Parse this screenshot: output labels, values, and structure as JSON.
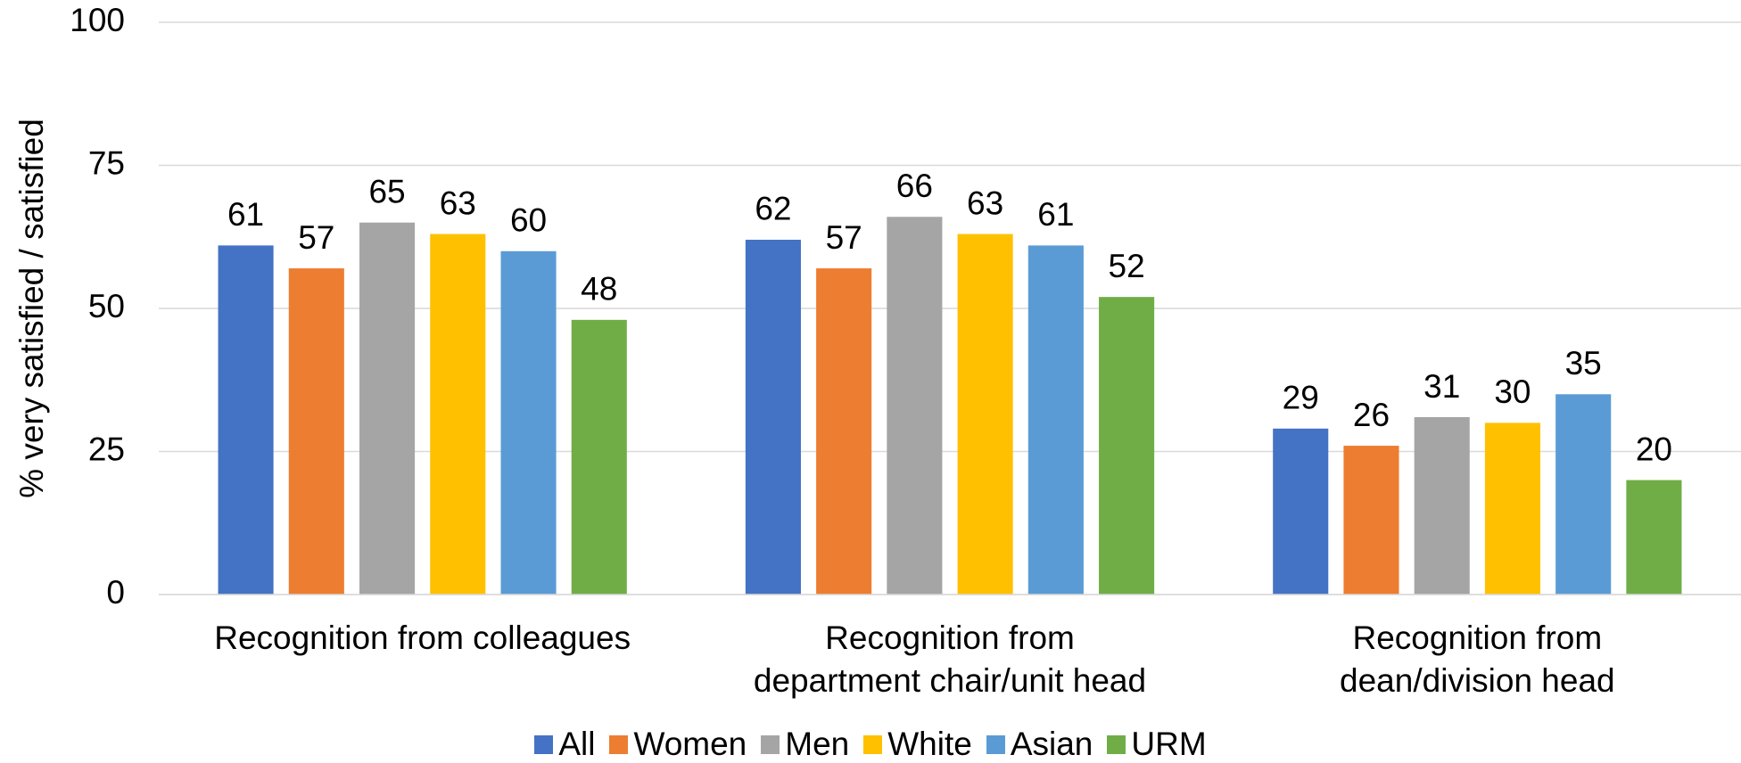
{
  "chart_data": {
    "type": "bar",
    "y_label": "% very satisfied / satisfied",
    "categories": [
      "Recognition from colleagues",
      "Recognition from\ndepartment chair/unit head",
      "Recognition from\ndean/division head"
    ],
    "series": [
      {
        "name": "All",
        "color": "#4472c4",
        "values": [
          61,
          62,
          29
        ]
      },
      {
        "name": "Women",
        "color": "#ed7d31",
        "values": [
          57,
          57,
          26
        ]
      },
      {
        "name": "Men",
        "color": "#a5a5a5",
        "values": [
          65,
          66,
          31
        ]
      },
      {
        "name": "White",
        "color": "#ffc000",
        "values": [
          63,
          63,
          30
        ]
      },
      {
        "name": "Asian",
        "color": "#5b9bd5",
        "values": [
          60,
          61,
          35
        ]
      },
      {
        "name": "URM",
        "color": "#70ad47",
        "values": [
          48,
          52,
          20
        ]
      }
    ],
    "ylim": [
      0,
      100
    ],
    "yticks": [
      0,
      25,
      50,
      75,
      100
    ],
    "grid": true,
    "legend": "bottom"
  }
}
